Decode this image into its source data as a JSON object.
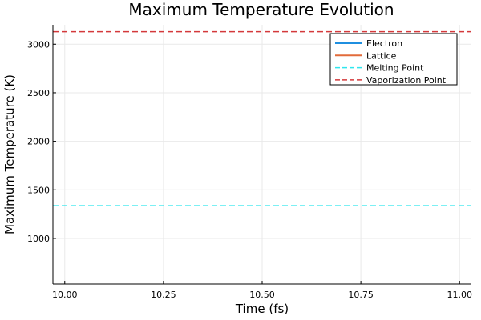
{
  "chart_data": {
    "type": "line",
    "title": "Maximum Temperature Evolution",
    "xlabel": "Time (fs)",
    "ylabel": "Maximum Temperature (K)",
    "xlim": [
      9.97,
      11.03
    ],
    "ylim": [
      530,
      3200
    ],
    "xticks": [
      10.0,
      10.25,
      10.5,
      10.75,
      11.0
    ],
    "xtick_labels": [
      "10.00",
      "10.25",
      "10.50",
      "10.75",
      "11.00"
    ],
    "yticks": [
      1000,
      1500,
      2000,
      2500,
      3000
    ],
    "ytick_labels": [
      "1000",
      "1500",
      "2000",
      "2500",
      "3000"
    ],
    "grid": true,
    "legend_position": "top-right",
    "series": [
      {
        "name": "Electron",
        "style": "solid",
        "color": "#1f8fe0",
        "x": [],
        "y": []
      },
      {
        "name": "Lattice",
        "style": "solid",
        "color": "#e26b3a",
        "x": [],
        "y": []
      }
    ],
    "hlines": [
      {
        "name": "Melting Point",
        "value": 1337,
        "style": "dashed",
        "color": "#2fe6ee"
      },
      {
        "name": "Vaporization Point",
        "value": 3129,
        "style": "dashed",
        "color": "#d4393b"
      }
    ]
  }
}
